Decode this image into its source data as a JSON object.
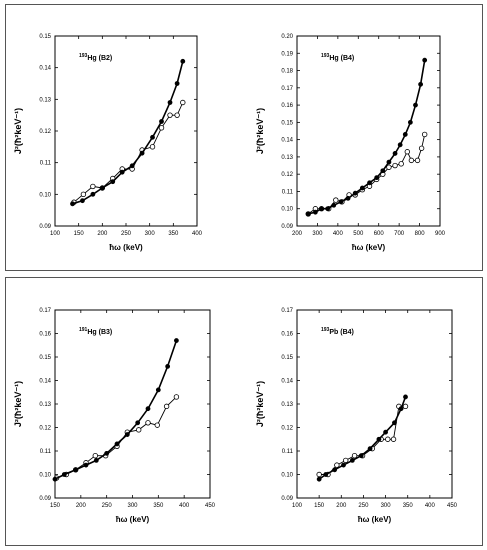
{
  "chart_data": [
    {
      "type": "line",
      "annotation": {
        "sup": "193",
        "text": "Hg (B2)"
      },
      "xlabel": "ħω (keV)",
      "ylabel": "J²(ħ²keV⁻¹)",
      "xlim": [
        100,
        400
      ],
      "ylim": [
        0.09,
        0.15
      ],
      "xticks": [
        100,
        150,
        200,
        250,
        300,
        350,
        400
      ],
      "yticks": [
        0.09,
        0.1,
        0.11,
        0.12,
        0.13,
        0.14,
        0.15
      ],
      "series": [
        {
          "marker": "filled",
          "x": [
            137,
            158,
            180,
            200,
            222,
            242,
            263,
            284,
            306,
            325,
            343,
            358,
            370
          ],
          "y": [
            0.097,
            0.098,
            0.1,
            0.102,
            0.104,
            0.107,
            0.109,
            0.113,
            0.118,
            0.123,
            0.129,
            0.135,
            0.142
          ]
        },
        {
          "marker": "open",
          "x": [
            140,
            160,
            180,
            200,
            222,
            242,
            263,
            284,
            306,
            325,
            343,
            358,
            370
          ],
          "y": [
            0.0975,
            0.1,
            0.1025,
            0.102,
            0.105,
            0.108,
            0.108,
            0.114,
            0.115,
            0.121,
            0.125,
            0.125,
            0.129
          ]
        }
      ]
    },
    {
      "type": "line",
      "annotation": {
        "sup": "193",
        "text": "Hg (B4)"
      },
      "xlabel": "ħω (keV)",
      "ylabel": "J²(ħ²keV⁻¹)",
      "xlim": [
        200,
        900
      ],
      "ylim": [
        0.09,
        0.2
      ],
      "xticks": [
        200,
        300,
        400,
        500,
        600,
        700,
        800,
        900
      ],
      "yticks": [
        0.09,
        0.1,
        0.11,
        0.12,
        0.13,
        0.14,
        0.15,
        0.16,
        0.17,
        0.18,
        0.19,
        0.2
      ],
      "series": [
        {
          "marker": "filled",
          "x": [
            255,
            290,
            320,
            350,
            380,
            415,
            450,
            485,
            520,
            555,
            590,
            620,
            650,
            680,
            705,
            730,
            755,
            780,
            805,
            825
          ],
          "y": [
            0.097,
            0.098,
            0.1,
            0.1,
            0.102,
            0.104,
            0.106,
            0.109,
            0.112,
            0.115,
            0.118,
            0.122,
            0.127,
            0.132,
            0.137,
            0.143,
            0.15,
            0.16,
            0.172,
            0.186
          ]
        },
        {
          "marker": "open",
          "x": [
            255,
            290,
            320,
            355,
            390,
            420,
            455,
            485,
            520,
            555,
            590,
            620,
            650,
            680,
            710,
            740,
            760,
            790,
            810,
            825
          ],
          "y": [
            0.097,
            0.1,
            0.1,
            0.1,
            0.105,
            0.104,
            0.108,
            0.108,
            0.111,
            0.113,
            0.117,
            0.12,
            0.124,
            0.125,
            0.126,
            0.133,
            0.128,
            0.128,
            0.135,
            0.143
          ]
        }
      ]
    },
    {
      "type": "line",
      "annotation": {
        "sup": "191",
        "text": "Hg (B3)"
      },
      "xlabel": "ħω (keV)",
      "ylabel": "J²(ħ²keV⁻¹)",
      "xlim": [
        150,
        450
      ],
      "ylim": [
        0.09,
        0.17
      ],
      "xticks": [
        150,
        200,
        250,
        300,
        350,
        400,
        450
      ],
      "yticks": [
        0.09,
        0.1,
        0.11,
        0.12,
        0.13,
        0.14,
        0.15,
        0.16,
        0.17
      ],
      "series": [
        {
          "marker": "filled",
          "x": [
            150,
            168,
            190,
            210,
            230,
            250,
            270,
            290,
            310,
            330,
            350,
            368,
            385
          ],
          "y": [
            0.098,
            0.1,
            0.102,
            0.104,
            0.106,
            0.109,
            0.113,
            0.117,
            0.122,
            0.128,
            0.136,
            0.146,
            0.157
          ]
        },
        {
          "marker": "open",
          "x": [
            153,
            172,
            190,
            210,
            228,
            248,
            270,
            290,
            312,
            330,
            348,
            366,
            385
          ],
          "y": [
            0.0985,
            0.1,
            0.102,
            0.105,
            0.108,
            0.108,
            0.112,
            0.118,
            0.119,
            0.122,
            0.121,
            0.129,
            0.133
          ]
        }
      ]
    },
    {
      "type": "line",
      "annotation": {
        "sup": "193",
        "text": "Pb (B4)"
      },
      "xlabel": "ħω (keV)",
      "ylabel": "J²(ħ²keV⁻¹)",
      "xlim": [
        100,
        450
      ],
      "ylim": [
        0.09,
        0.17
      ],
      "xticks": [
        100,
        150,
        200,
        250,
        300,
        350,
        400,
        450
      ],
      "yticks": [
        0.09,
        0.1,
        0.11,
        0.12,
        0.13,
        0.14,
        0.15,
        0.16,
        0.17
      ],
      "series": [
        {
          "marker": "filled",
          "x": [
            150,
            165,
            185,
            205,
            225,
            245,
            265,
            285,
            300,
            320,
            335,
            345
          ],
          "y": [
            0.098,
            0.1,
            0.102,
            0.104,
            0.106,
            0.108,
            0.111,
            0.115,
            0.118,
            0.122,
            0.128,
            0.133
          ]
        },
        {
          "marker": "open",
          "x": [
            150,
            170,
            190,
            210,
            230,
            248,
            270,
            290,
            305,
            318,
            330,
            345
          ],
          "y": [
            0.1,
            0.1,
            0.104,
            0.106,
            0.108,
            0.108,
            0.111,
            0.115,
            0.115,
            0.115,
            0.129,
            0.129
          ]
        }
      ]
    }
  ]
}
